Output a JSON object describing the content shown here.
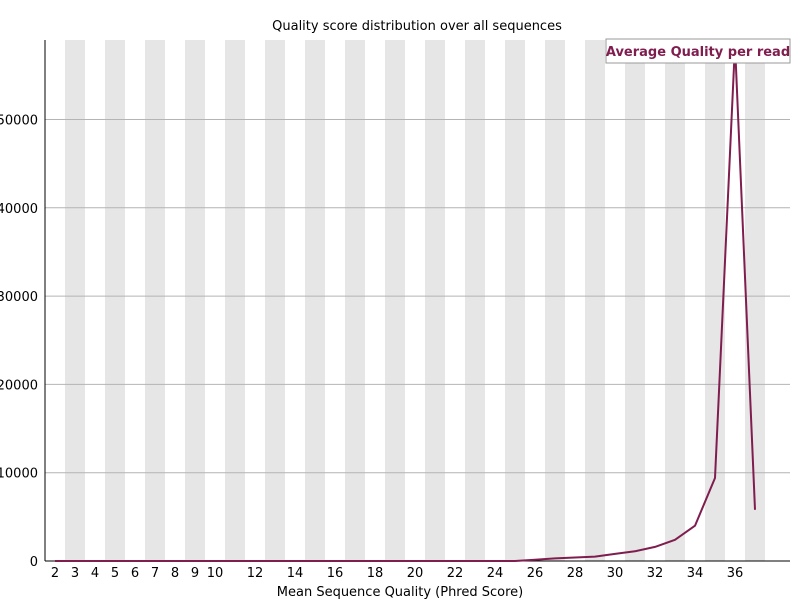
{
  "chart_data": {
    "type": "line",
    "title": "Quality score distribution over all sequences",
    "xlabel": "Mean Sequence Quality (Phred Score)",
    "ylabel": "",
    "x": [
      2,
      3,
      4,
      5,
      6,
      7,
      8,
      9,
      10,
      11,
      12,
      13,
      14,
      15,
      16,
      17,
      18,
      19,
      20,
      21,
      22,
      23,
      24,
      25,
      26,
      27,
      28,
      29,
      30,
      31,
      32,
      33,
      34,
      35,
      36,
      37
    ],
    "x_tick_labels": [
      "2",
      "3",
      "4",
      "5",
      "6",
      "7",
      "8",
      "9",
      "10",
      "12",
      "14",
      "16",
      "18",
      "20",
      "22",
      "24",
      "26",
      "28",
      "30",
      "32",
      "34",
      "36"
    ],
    "y_ticks": [
      0,
      10000,
      20000,
      30000,
      40000,
      50000
    ],
    "ylim": [
      0,
      59000
    ],
    "series": [
      {
        "name": "Average Quality per read",
        "color": "#7f1d4f",
        "values": [
          0,
          0,
          0,
          0,
          0,
          0,
          0,
          0,
          0,
          0,
          0,
          0,
          0,
          0,
          0,
          0,
          0,
          0,
          0,
          0,
          0,
          0,
          0,
          0,
          150,
          300,
          400,
          500,
          800,
          1100,
          1600,
          2400,
          4000,
          9400,
          58500,
          5800
        ]
      }
    ],
    "grid": true,
    "legend_position": "top-right",
    "band_color": "#e6e6e6"
  }
}
